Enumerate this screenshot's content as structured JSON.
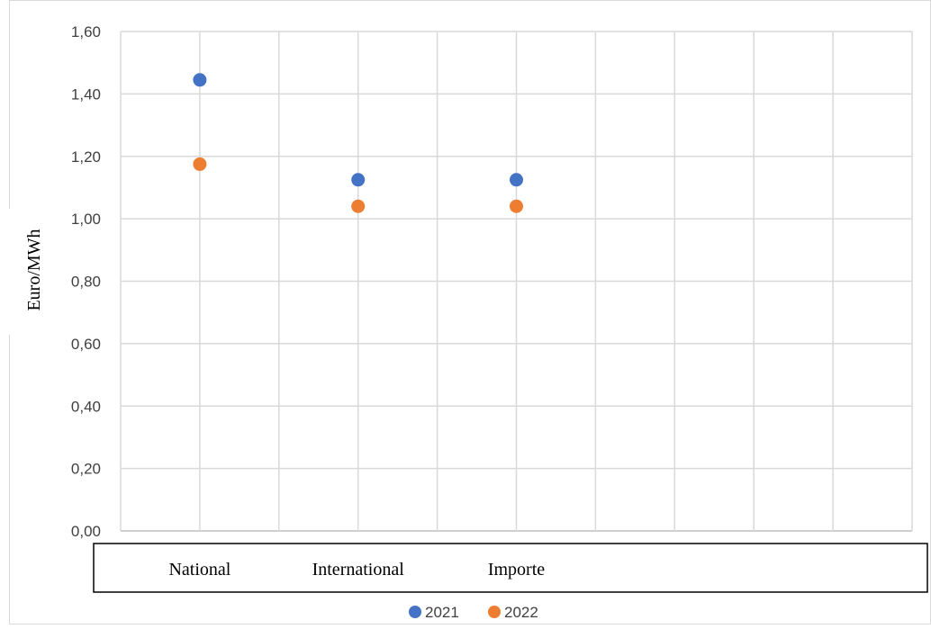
{
  "chart_data": {
    "type": "scatter",
    "categories": [
      "National",
      "International",
      "Importe",
      "",
      ""
    ],
    "ylabel": "Euro/MWh",
    "ylim": [
      0,
      1.6
    ],
    "ytick_step": 0.2,
    "ytick_labels": [
      "0,00",
      "0,20",
      "0,40",
      "0,60",
      "0,80",
      "1,00",
      "1,20",
      "1,40",
      "1,60"
    ],
    "grid": true,
    "legend_position": "bottom-center",
    "series": [
      {
        "name": "2021",
        "color": "#4472C4",
        "values": [
          1.445,
          1.125,
          1.125
        ]
      },
      {
        "name": "2022",
        "color": "#ED7D31",
        "values": [
          1.175,
          1.04,
          1.04
        ]
      }
    ]
  }
}
